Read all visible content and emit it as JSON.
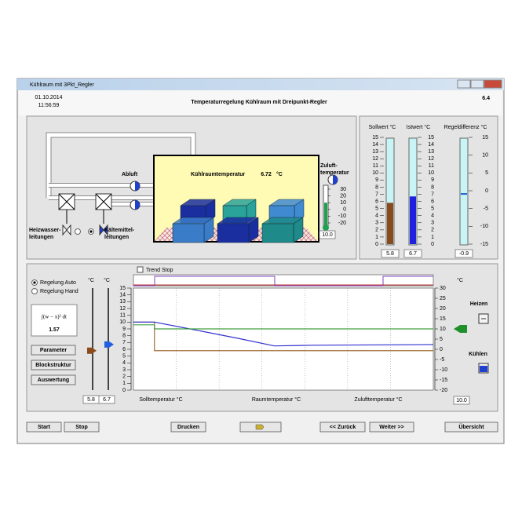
{
  "window": {
    "title": "Kühlraum mit 3Pkt_Regler"
  },
  "header": {
    "date": "01.10.2014",
    "time": "11:56:59",
    "title": "Temperaturregelung Kühlraum mit Dreipunkt-Regler",
    "version": "6.4"
  },
  "plant": {
    "exhaust": "Abluft",
    "room_label": "Kühlraumtemperatur",
    "room_temp": "6.72",
    "unit": "°C",
    "supply_label": [
      "Zuluft-",
      "temperatur"
    ],
    "supply_scale": [
      30,
      20,
      10,
      0,
      -10,
      -20
    ],
    "supply_value": "10.0",
    "heating_pipes": [
      "Heizwasser-",
      "leitungen"
    ],
    "cooling_pipes": [
      "Kältemittel-",
      "leitungen"
    ]
  },
  "gauges": [
    {
      "label": "Sollwert °C",
      "color": "#8b4a1c",
      "scale": [
        15,
        14,
        13,
        12,
        11,
        10,
        9,
        8,
        7,
        6,
        5,
        4,
        3,
        2,
        1,
        0
      ],
      "value": "5.8"
    },
    {
      "label": "Istwert °C",
      "color": "#2020e0",
      "scale": [
        15,
        14,
        13,
        12,
        11,
        10,
        9,
        8,
        7,
        6,
        5,
        4,
        3,
        2,
        1,
        0
      ],
      "value": "6.7"
    },
    {
      "label": "Regeldifferenz °C",
      "color": "#2060d0",
      "scale": [
        15,
        10,
        5,
        0,
        -5,
        -10,
        -15
      ],
      "value": "-0.9"
    }
  ],
  "control": {
    "trend_stop": "Trend Stop",
    "modes": [
      "Regelung Auto",
      "Regelung Hand"
    ],
    "integral_formula": "∫(w − x)² dt",
    "integral_value": "1.57",
    "buttons": [
      "Parameter",
      "Blockstruktur",
      "Auswertung"
    ],
    "slider_units": [
      "°C",
      "°C"
    ],
    "slider_values": [
      "5.8",
      "6.7"
    ],
    "output_unit": "°C",
    "heat": "Heizen",
    "cool": "Kühlen",
    "output_value": "10.0"
  },
  "chart_data": {
    "type": "line",
    "xlim": [
      0,
      100
    ],
    "ylim": [
      0,
      15
    ],
    "yticks": [
      15,
      14,
      13,
      12,
      11,
      10,
      9,
      8,
      7,
      6,
      5,
      4,
      3,
      2,
      1,
      0
    ],
    "y2lim": [
      -20,
      30
    ],
    "y2ticks": [
      30,
      25,
      20,
      15,
      10,
      5,
      0,
      -5,
      -10,
      -15,
      -20
    ],
    "series": [
      {
        "name": "Solltemperatur °C",
        "color": "#a0703a",
        "x": [
          0,
          7,
          7,
          100
        ],
        "values": [
          10,
          10,
          5.8,
          5.8
        ]
      },
      {
        "name": "Raumtemperatur °C",
        "color": "#3030d0",
        "x": [
          0,
          7,
          20,
          35,
          47,
          60,
          100
        ],
        "values": [
          10,
          10,
          8.9,
          7.6,
          6.5,
          6.6,
          6.7
        ]
      },
      {
        "name": "Zulufttemperatur °C",
        "color": "#40a040",
        "axis": "y2",
        "x": [
          0,
          7,
          7,
          100
        ],
        "values": [
          12,
          12,
          10,
          10
        ]
      }
    ]
  },
  "footer": {
    "buttons": [
      "Start",
      "Stop",
      "Drucken",
      "<< Zurück",
      "Weiter >>",
      "Übersicht"
    ]
  }
}
